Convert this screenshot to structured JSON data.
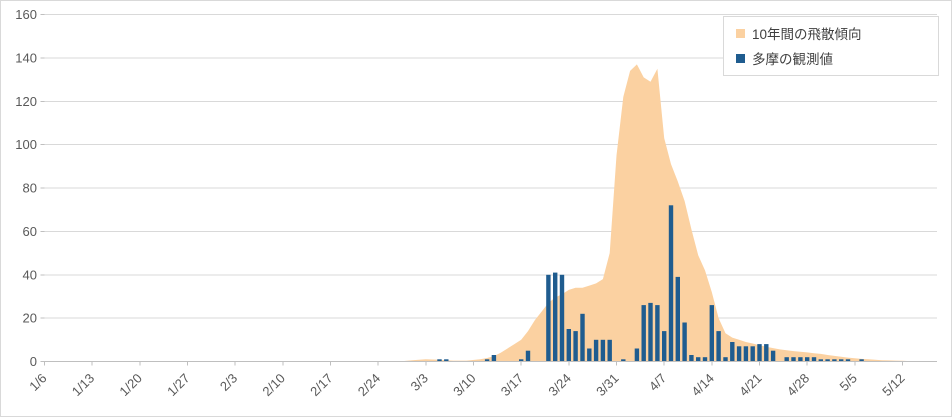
{
  "chart": {
    "legend": {
      "position": "top-right",
      "items": [
        {
          "label": "10年間の飛散傾向",
          "color": "#FBD1A1",
          "series_type": "area",
          "icon": "square-swatch"
        },
        {
          "label": "多摩の観測値",
          "color": "#1F5C8F",
          "series_type": "bar",
          "icon": "square-swatch"
        }
      ]
    },
    "colors": {
      "background": "#FFFFFF",
      "frame_border": "#D9D9D9",
      "gridline": "#D9D9D9",
      "axis_line": "#BFBFBF",
      "tick_label": "#595959",
      "legend_text": "#404040",
      "area_fill": "#FBD1A1",
      "bar_fill": "#1F5C8F"
    }
  },
  "chart_data": {
    "type": "area+bar combo (daily pollen dispersal)",
    "title": "",
    "xlabel": "",
    "ylabel": "",
    "ylim": [
      0,
      160
    ],
    "y_tick_step": 20,
    "y_tick_labels": [
      "0",
      "20",
      "40",
      "60",
      "80",
      "100",
      "120",
      "140",
      "160"
    ],
    "x_tick_labels": [
      "1/6",
      "1/13",
      "1/20",
      "1/27",
      "2/3",
      "2/10",
      "2/17",
      "2/24",
      "3/3",
      "3/10",
      "3/17",
      "3/24",
      "3/31",
      "4/7",
      "4/14",
      "4/21",
      "4/28",
      "5/5",
      "5/12"
    ],
    "x_tick_interval_days": 7,
    "grid": "horizontal-only",
    "legend_position": "top-right",
    "series": [
      {
        "name": "10年間の飛散傾向",
        "type": "area",
        "color": "#FBD1A1",
        "points": [
          [
            "2/27",
            0
          ],
          [
            "3/1",
            0.6
          ],
          [
            "3/3",
            1
          ],
          [
            "3/5",
            0.8
          ],
          [
            "3/7",
            0.4
          ],
          [
            "3/9",
            0.4
          ],
          [
            "3/11",
            1
          ],
          [
            "3/12",
            1.6
          ],
          [
            "3/13",
            2.5
          ],
          [
            "3/14",
            4
          ],
          [
            "3/15",
            6
          ],
          [
            "3/16",
            8
          ],
          [
            "3/17",
            10
          ],
          [
            "3/18",
            14
          ],
          [
            "3/19",
            19
          ],
          [
            "3/20",
            23
          ],
          [
            "3/21",
            27
          ],
          [
            "3/22",
            29.5
          ],
          [
            "3/23",
            31
          ],
          [
            "3/24",
            33
          ],
          [
            "3/25",
            34
          ],
          [
            "3/26",
            34
          ],
          [
            "3/27",
            35
          ],
          [
            "3/28",
            36
          ],
          [
            "3/29",
            38
          ],
          [
            "3/30",
            50
          ],
          [
            "3/31",
            95
          ],
          [
            "4/1",
            122
          ],
          [
            "4/2",
            134
          ],
          [
            "4/3",
            137
          ],
          [
            "4/4",
            131
          ],
          [
            "4/5",
            129
          ],
          [
            "4/6",
            135
          ],
          [
            "4/7",
            103
          ],
          [
            "4/8",
            91
          ],
          [
            "4/9",
            83
          ],
          [
            "4/10",
            74
          ],
          [
            "4/11",
            61
          ],
          [
            "4/12",
            49
          ],
          [
            "4/13",
            42
          ],
          [
            "4/14",
            32
          ],
          [
            "4/15",
            20
          ],
          [
            "4/16",
            13
          ],
          [
            "4/17",
            11
          ],
          [
            "4/18",
            10
          ],
          [
            "4/19",
            9
          ],
          [
            "4/20",
            8.3
          ],
          [
            "4/21",
            7.5
          ],
          [
            "4/22",
            6.8
          ],
          [
            "4/23",
            6.2
          ],
          [
            "4/24",
            5.6
          ],
          [
            "4/25",
            5.2
          ],
          [
            "4/26",
            4.8
          ],
          [
            "4/27",
            4.5
          ],
          [
            "4/28",
            4.2
          ],
          [
            "4/29",
            3.8
          ],
          [
            "4/30",
            3.5
          ],
          [
            "5/1",
            3
          ],
          [
            "5/2",
            2.6
          ],
          [
            "5/3",
            2.2
          ],
          [
            "5/4",
            1.8
          ],
          [
            "5/5",
            1.5
          ],
          [
            "5/6",
            1.2
          ],
          [
            "5/7",
            1
          ],
          [
            "5/8",
            0.8
          ],
          [
            "5/9",
            0.6
          ],
          [
            "5/10",
            0.5
          ],
          [
            "5/11",
            0.4
          ],
          [
            "5/12",
            0.3
          ],
          [
            "5/13",
            0.2
          ],
          [
            "5/14",
            0.1
          ],
          [
            "5/15",
            0
          ]
        ]
      },
      {
        "name": "多摩の観測値",
        "type": "bar",
        "color": "#1F5C8F",
        "points": [
          [
            "3/5",
            1
          ],
          [
            "3/6",
            1
          ],
          [
            "3/12",
            1
          ],
          [
            "3/13",
            3
          ],
          [
            "3/17",
            1
          ],
          [
            "3/18",
            5
          ],
          [
            "3/21",
            40
          ],
          [
            "3/22",
            41
          ],
          [
            "3/23",
            40
          ],
          [
            "3/24",
            15
          ],
          [
            "3/25",
            14
          ],
          [
            "3/26",
            22
          ],
          [
            "3/27",
            6
          ],
          [
            "3/28",
            10
          ],
          [
            "3/29",
            10
          ],
          [
            "3/30",
            10
          ],
          [
            "4/1",
            1
          ],
          [
            "4/3",
            6
          ],
          [
            "4/4",
            26
          ],
          [
            "4/5",
            27
          ],
          [
            "4/6",
            26
          ],
          [
            "4/7",
            14
          ],
          [
            "4/8",
            72
          ],
          [
            "4/9",
            39
          ],
          [
            "4/10",
            18
          ],
          [
            "4/11",
            3
          ],
          [
            "4/12",
            2
          ],
          [
            "4/13",
            2
          ],
          [
            "4/14",
            26
          ],
          [
            "4/15",
            14
          ],
          [
            "4/16",
            2
          ],
          [
            "4/17",
            9
          ],
          [
            "4/18",
            7
          ],
          [
            "4/19",
            7
          ],
          [
            "4/20",
            7
          ],
          [
            "4/21",
            8
          ],
          [
            "4/22",
            8
          ],
          [
            "4/23",
            5
          ],
          [
            "4/25",
            2
          ],
          [
            "4/26",
            2
          ],
          [
            "4/27",
            2
          ],
          [
            "4/28",
            2
          ],
          [
            "4/29",
            2
          ],
          [
            "4/30",
            1
          ],
          [
            "5/1",
            1
          ],
          [
            "5/2",
            1
          ],
          [
            "5/3",
            1
          ],
          [
            "5/4",
            1
          ],
          [
            "5/6",
            1
          ]
        ]
      }
    ]
  }
}
